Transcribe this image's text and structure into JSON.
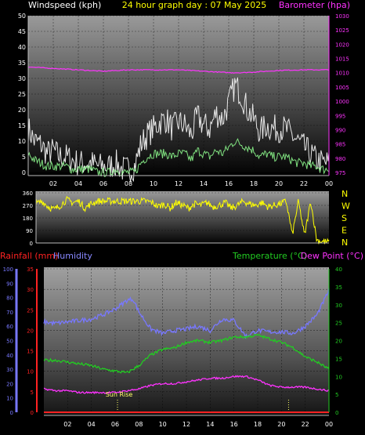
{
  "header": {
    "title": "24 hour graph day : 07 May 2025",
    "left_label": "Windspeed (kph)",
    "right_label": "Barometer (hpa)"
  },
  "colors": {
    "wind_gust": "#e8e8e8",
    "wind_avg": "#7fe07f",
    "barometer": "#ff33ff",
    "direction": "#ffff00",
    "rain_axis": "#ff2222",
    "humidity": "#7878ff",
    "temperature": "#22cc22",
    "dew_point": "#ff33ff",
    "rainfall": "#ff2222",
    "sun_marker": "#ffff66"
  },
  "chart_data": [
    {
      "type": "line",
      "name": "wind_barometer",
      "x_ticks": [
        "02",
        "04",
        "06",
        "08",
        "10",
        "12",
        "14",
        "16",
        "18",
        "20",
        "22",
        "00"
      ],
      "xlim": [
        0,
        24
      ],
      "ylim_left": [
        0,
        50
      ],
      "y_ticks_left": [
        "0",
        "5",
        "10",
        "15",
        "20",
        "25",
        "30",
        "35",
        "40",
        "45",
        "50"
      ],
      "ylim_right": [
        975,
        1030
      ],
      "y_ticks_right": [
        "975",
        "980",
        "985",
        "990",
        "995",
        "1000",
        "1005",
        "1010",
        "1015",
        "1020",
        "1025",
        "1030"
      ],
      "series": [
        {
          "key": "gust",
          "x": [
            0,
            0.5,
            1,
            1.5,
            2,
            2.5,
            3,
            3.5,
            4,
            4.5,
            5,
            5.5,
            6,
            6.5,
            7,
            7.5,
            8,
            8.5,
            9,
            9.5,
            10,
            10.5,
            11,
            11.5,
            12,
            12.5,
            13,
            13.5,
            14,
            14.5,
            15,
            15.5,
            16,
            16.5,
            17,
            17.5,
            18,
            18.5,
            19,
            19.5,
            20,
            20.5,
            21,
            21.5,
            22,
            22.5,
            23,
            23.5,
            24
          ],
          "values": [
            14,
            10,
            9,
            6,
            7,
            5,
            5,
            4,
            3,
            3,
            3,
            2,
            2,
            2,
            3,
            1,
            1,
            2,
            9,
            12,
            14,
            16,
            17,
            14,
            16,
            15,
            12,
            18,
            15,
            14,
            19,
            17,
            22,
            28,
            25,
            20,
            17,
            13,
            15,
            14,
            14,
            14,
            12,
            10,
            8,
            6,
            4,
            3,
            3
          ]
        },
        {
          "key": "avg",
          "x": [
            0,
            0.5,
            1,
            1.5,
            2,
            2.5,
            3,
            3.5,
            4,
            4.5,
            5,
            5.5,
            6,
            6.5,
            7,
            7.5,
            8,
            8.5,
            9,
            9.5,
            10,
            10.5,
            11,
            11.5,
            12,
            12.5,
            13,
            13.5,
            14,
            14.5,
            15,
            15.5,
            16,
            16.5,
            17,
            17.5,
            18,
            18.5,
            19,
            19.5,
            20,
            20.5,
            21,
            21.5,
            22,
            22.5,
            23,
            23.5,
            24
          ],
          "values": [
            6,
            4,
            3,
            2,
            2,
            2,
            2,
            1,
            1,
            1,
            1,
            0,
            0,
            0,
            1,
            0,
            0,
            0,
            3,
            5,
            6,
            6,
            6,
            5,
            6,
            6,
            4,
            7,
            6,
            5,
            7,
            6,
            8,
            10,
            9,
            8,
            7,
            5,
            6,
            5,
            5,
            5,
            4,
            3,
            3,
            2,
            2,
            1,
            1
          ]
        },
        {
          "key": "barometer",
          "axis": "right",
          "x": [
            0,
            2,
            4,
            6,
            8,
            10,
            12,
            14,
            16,
            17,
            18,
            20,
            22,
            24
          ],
          "values": [
            1012,
            1011.5,
            1011,
            1010.5,
            1011,
            1011,
            1011,
            1010.5,
            1010,
            1010,
            1010.2,
            1010.8,
            1011,
            1011
          ]
        }
      ]
    },
    {
      "type": "line",
      "name": "wind_direction",
      "xlim": [
        0,
        24
      ],
      "ylim": [
        0,
        360
      ],
      "y_ticks": [
        "0",
        "90",
        "180",
        "270",
        "360"
      ],
      "compass": [
        "N",
        "W",
        "S",
        "E",
        "N"
      ],
      "series": [
        {
          "key": "direction",
          "x": [
            0,
            0.5,
            1,
            1.5,
            2,
            2.5,
            3,
            3.5,
            4,
            4.5,
            5,
            6,
            7,
            8,
            9,
            9.5,
            10,
            10.5,
            11,
            11.5,
            12,
            12.5,
            13,
            13.5,
            14,
            14.5,
            15,
            15.5,
            16,
            16.5,
            17,
            17.5,
            18,
            18.5,
            19,
            19.5,
            20,
            20.5,
            21,
            21.5,
            22,
            22.5,
            23,
            23.5,
            24
          ],
          "values": [
            280,
            300,
            260,
            240,
            270,
            310,
            290,
            300,
            250,
            280,
            300,
            300,
            300,
            300,
            300,
            290,
            260,
            280,
            250,
            290,
            270,
            250,
            280,
            270,
            290,
            260,
            270,
            290,
            250,
            270,
            300,
            280,
            270,
            290,
            260,
            270,
            280,
            300,
            60,
            300,
            50,
            300,
            20,
            10,
            5
          ]
        }
      ]
    },
    {
      "type": "line",
      "name": "temp_humidity_rain",
      "xlim": [
        0,
        24
      ],
      "ylim_humidity": [
        0,
        100
      ],
      "y_ticks_humidity": [
        "0",
        "10",
        "20",
        "30",
        "40",
        "50",
        "60",
        "70",
        "80",
        "90",
        "100"
      ],
      "ylim_rain": [
        0,
        35
      ],
      "y_ticks_rain": [
        "0",
        "5",
        "10",
        "15",
        "20",
        "25",
        "30",
        "35"
      ],
      "ylim_temp": [
        0,
        40
      ],
      "y_ticks_temp": [
        "0",
        "5",
        "10",
        "15",
        "20",
        "25",
        "30",
        "35",
        "40"
      ],
      "x_ticks": [
        "02",
        "04",
        "06",
        "08",
        "10",
        "12",
        "14",
        "16",
        "18",
        "20",
        "22",
        "00"
      ],
      "legend": {
        "rainfall": "Rainfall (mm)",
        "humidity": "Humidity",
        "temperature": "Temperature (°C)",
        "dew_point": "Dew Point (°C)"
      },
      "annotations": [
        {
          "label": "Sun Rise",
          "x": 6.2
        },
        {
          "label": "",
          "x": 20.6
        }
      ],
      "series": [
        {
          "key": "humidity",
          "x": [
            0,
            1,
            2,
            3,
            4,
            5,
            6,
            7,
            7.5,
            8,
            9,
            10,
            11,
            12,
            13,
            14,
            15,
            16,
            17,
            18,
            19,
            20,
            21,
            22,
            23,
            24
          ],
          "values": [
            63,
            62,
            63,
            64,
            65,
            68,
            72,
            78,
            79,
            70,
            58,
            55,
            57,
            58,
            60,
            57,
            65,
            64,
            53,
            57,
            56,
            56,
            55,
            60,
            68,
            85
          ]
        },
        {
          "key": "temperature",
          "x": [
            0,
            1,
            2,
            3,
            4,
            5,
            6,
            7,
            8,
            9,
            10,
            11,
            12,
            13,
            14,
            15,
            16,
            17,
            18,
            19,
            20,
            21,
            22,
            23,
            24
          ],
          "values": [
            14.5,
            14.5,
            14,
            13.5,
            13,
            12,
            11.5,
            11,
            13,
            16,
            17.5,
            18,
            19.5,
            20,
            19.5,
            20,
            21,
            21,
            21.5,
            20.5,
            19.5,
            18,
            15.5,
            14,
            12
          ]
        },
        {
          "key": "dew_point",
          "x": [
            0,
            1,
            2,
            3,
            4,
            5,
            6,
            7,
            8,
            9,
            10,
            11,
            12,
            13,
            14,
            15,
            16,
            17,
            18,
            19,
            20,
            21,
            22,
            23,
            24
          ],
          "values": [
            6.5,
            6,
            6,
            5.5,
            5.5,
            5.5,
            5.5,
            6,
            6.5,
            7.5,
            8,
            8,
            8.5,
            9,
            9.5,
            9.5,
            10,
            10,
            9,
            7.5,
            7,
            7,
            7,
            6.5,
            6
          ]
        },
        {
          "key": "rainfall",
          "x": [
            0,
            24
          ],
          "values": [
            0,
            0
          ]
        }
      ]
    }
  ]
}
